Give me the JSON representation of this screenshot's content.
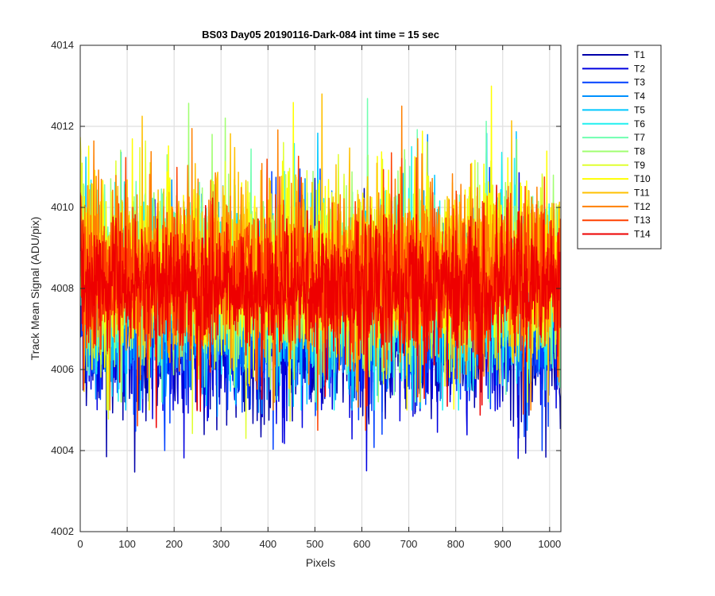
{
  "chart_data": {
    "type": "line",
    "title": "BS03 Day05 20190116-Dark-084 int time = 15 sec",
    "xlabel": "Pixels",
    "ylabel": "Track Mean Signal (ADU/pix)",
    "xlim": [
      0,
      1024
    ],
    "ylim": [
      4002,
      4014
    ],
    "xticks": [
      0,
      100,
      200,
      300,
      400,
      500,
      600,
      700,
      800,
      900,
      1000
    ],
    "yticks": [
      4002,
      4004,
      4006,
      4008,
      4010,
      4012,
      4014
    ],
    "grid": true,
    "legend_position": "outside-top-right",
    "x_points": 1024,
    "series": [
      {
        "name": "T1",
        "color": "#0000aa",
        "mean": 4006.7,
        "spread": 0.9,
        "approx_min": 4002.1,
        "approx_max": 4011.0
      },
      {
        "name": "T2",
        "color": "#0000e0",
        "mean": 4006.9,
        "spread": 0.9,
        "approx_min": 4003.5,
        "approx_max": 4011.0
      },
      {
        "name": "T3",
        "color": "#0040ff",
        "mean": 4007.1,
        "spread": 0.9,
        "approx_min": 4004.0,
        "approx_max": 4011.2
      },
      {
        "name": "T4",
        "color": "#0090ff",
        "mean": 4007.5,
        "spread": 1.0,
        "approx_min": 4004.5,
        "approx_max": 4012.5
      },
      {
        "name": "T5",
        "color": "#00c8ff",
        "mean": 4007.8,
        "spread": 1.0,
        "approx_min": 4005.0,
        "approx_max": 4013.0
      },
      {
        "name": "T6",
        "color": "#20f0f0",
        "mean": 4008.0,
        "spread": 1.0,
        "approx_min": 4005.0,
        "approx_max": 4013.4
      },
      {
        "name": "T7",
        "color": "#70ffb0",
        "mean": 4008.2,
        "spread": 1.0,
        "approx_min": 4005.2,
        "approx_max": 4013.0
      },
      {
        "name": "T8",
        "color": "#a0ff70",
        "mean": 4008.3,
        "spread": 1.0,
        "approx_min": 4005.2,
        "approx_max": 4013.2
      },
      {
        "name": "T9",
        "color": "#e0ff30",
        "mean": 4008.4,
        "spread": 1.0,
        "approx_min": 4004.3,
        "approx_max": 4012.8
      },
      {
        "name": "T10",
        "color": "#ffff00",
        "mean": 4008.5,
        "spread": 1.0,
        "approx_min": 4005.0,
        "approx_max": 4013.0
      },
      {
        "name": "T11",
        "color": "#ffc000",
        "mean": 4008.5,
        "spread": 1.0,
        "approx_min": 4005.2,
        "approx_max": 4012.8
      },
      {
        "name": "T12",
        "color": "#ff8000",
        "mean": 4008.4,
        "spread": 1.0,
        "approx_min": 4005.0,
        "approx_max": 4012.5
      },
      {
        "name": "T13",
        "color": "#ff4000",
        "mean": 4008.2,
        "spread": 0.9,
        "approx_min": 4004.5,
        "approx_max": 4013.0
      },
      {
        "name": "T14",
        "color": "#ee0000",
        "mean": 4008.0,
        "spread": 0.8,
        "approx_min": 4004.2,
        "approx_max": 4012.2
      }
    ]
  }
}
